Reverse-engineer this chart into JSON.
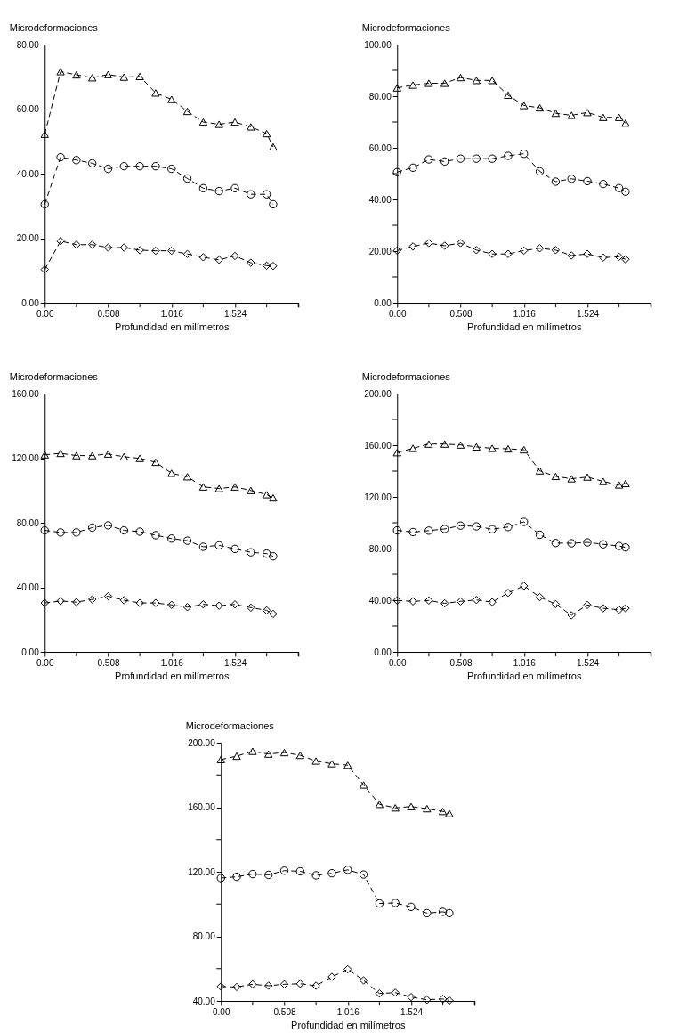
{
  "chart_data": [
    {
      "type": "line",
      "line_style": "dashed",
      "xlabel": "Profundidad en milímetros",
      "ylabel": "Microdeformaciones",
      "xlim": [
        0,
        2.032
      ],
      "ylim": [
        0,
        80
      ],
      "x": [
        0,
        0.127,
        0.254,
        0.381,
        0.508,
        0.635,
        0.762,
        0.889,
        1.016,
        1.143,
        1.27,
        1.397,
        1.524,
        1.651,
        1.778,
        1.83
      ],
      "xticks": [
        {
          "value": 0,
          "label": "0.00"
        },
        {
          "value": 0.254,
          "label": null
        },
        {
          "value": 0.508,
          "label": "0.508"
        },
        {
          "value": 0.762,
          "label": null
        },
        {
          "value": 1.016,
          "label": "1.016"
        },
        {
          "value": 1.27,
          "label": null
        },
        {
          "value": 1.524,
          "label": "1.524"
        },
        {
          "value": 1.778,
          "label": null
        },
        {
          "value": 2.032,
          "label": null
        }
      ],
      "yticks": [
        {
          "value": 0,
          "label": "0.00"
        },
        {
          "value": 20,
          "label": "20.00"
        },
        {
          "value": 40,
          "label": "40.00"
        },
        {
          "value": 60,
          "label": "60.00"
        },
        {
          "value": 80,
          "label": "80.00"
        }
      ],
      "series": [
        {
          "marker": "triangle",
          "color": "#000000",
          "values": [
            52.2,
            71.6,
            70.6,
            69.7,
            70.7,
            69.9,
            70.1,
            65,
            63,
            59.3,
            56,
            55.3,
            56,
            54.5,
            52.4,
            48.3
          ]
        },
        {
          "marker": "circle",
          "color": "#000000",
          "values": [
            30.5,
            45.1,
            44.2,
            43.2,
            41.5,
            42.3,
            42.3,
            42.3,
            41.5,
            38.5,
            35.5,
            34.6,
            35.5,
            33.6,
            33.6,
            30.5
          ]
        },
        {
          "marker": "diamond",
          "color": "#000000",
          "values": [
            10.3,
            19.1,
            18,
            18,
            17.1,
            17.1,
            16.3,
            16.1,
            16.1,
            15.1,
            14.1,
            13.3,
            14.5,
            12.4,
            11.5,
            11.4
          ]
        }
      ]
    },
    {
      "type": "line",
      "line_style": "dashed",
      "xlabel": "Profundidad en milímetros",
      "ylabel": "Microdeformaciones",
      "xlim": [
        0,
        2.032
      ],
      "ylim": [
        0,
        100
      ],
      "x": [
        0,
        0.127,
        0.254,
        0.381,
        0.508,
        0.635,
        0.762,
        0.889,
        1.016,
        1.143,
        1.27,
        1.397,
        1.524,
        1.651,
        1.778,
        1.83
      ],
      "xticks": [
        {
          "value": 0,
          "label": "0.00"
        },
        {
          "value": 0.254,
          "label": null
        },
        {
          "value": 0.508,
          "label": "0.508"
        },
        {
          "value": 0.762,
          "label": null
        },
        {
          "value": 1.016,
          "label": "1.016"
        },
        {
          "value": 1.27,
          "label": null
        },
        {
          "value": 1.524,
          "label": "1.524"
        },
        {
          "value": 1.778,
          "label": null
        },
        {
          "value": 2.032,
          "label": null
        }
      ],
      "yticks": [
        {
          "value": 0,
          "label": "0.00"
        },
        {
          "value": 10,
          "label": null
        },
        {
          "value": 20,
          "label": "20.00"
        },
        {
          "value": 30,
          "label": null
        },
        {
          "value": 40,
          "label": "40.00"
        },
        {
          "value": 50,
          "label": null
        },
        {
          "value": 60,
          "label": "60.00"
        },
        {
          "value": 70,
          "label": null
        },
        {
          "value": 80,
          "label": "80.00"
        },
        {
          "value": 90,
          "label": null
        },
        {
          "value": 100,
          "label": "100.00"
        }
      ],
      "series": [
        {
          "marker": "triangle",
          "color": "#000000",
          "values": [
            83.2,
            84.3,
            85,
            85,
            87.2,
            86.1,
            86.1,
            80.4,
            76.4,
            75.5,
            73.4,
            72.6,
            73.7,
            71.8,
            71.8,
            69.6
          ]
        },
        {
          "marker": "circle",
          "color": "#000000",
          "values": [
            50.6,
            52.3,
            55.5,
            54.7,
            55.8,
            55.8,
            55.8,
            56.9,
            57.7,
            50.9,
            46.9,
            48,
            47.1,
            46,
            44.4,
            43
          ]
        },
        {
          "marker": "diamond",
          "color": "#000000",
          "values": [
            20.2,
            21.8,
            23.1,
            22.1,
            23.1,
            20.4,
            18.9,
            18.9,
            20.2,
            21.1,
            20.4,
            18.3,
            18.9,
            17.5,
            17.8,
            16.8
          ]
        }
      ]
    },
    {
      "type": "line",
      "line_style": "dashed",
      "xlabel": "Profundidad en milímetros",
      "ylabel": "Microdeformaciones",
      "xlim": [
        0,
        2.032
      ],
      "ylim": [
        0,
        160
      ],
      "x": [
        0,
        0.127,
        0.254,
        0.381,
        0.508,
        0.635,
        0.762,
        0.889,
        1.016,
        1.143,
        1.27,
        1.397,
        1.524,
        1.651,
        1.778,
        1.83
      ],
      "xticks": [
        {
          "value": 0,
          "label": "0.00"
        },
        {
          "value": 0.254,
          "label": null
        },
        {
          "value": 0.508,
          "label": "0.508"
        },
        {
          "value": 0.762,
          "label": null
        },
        {
          "value": 1.016,
          "label": "1.016"
        },
        {
          "value": 1.27,
          "label": null
        },
        {
          "value": 1.524,
          "label": "1.524"
        },
        {
          "value": 1.778,
          "label": null
        },
        {
          "value": 2.032,
          "label": null
        }
      ],
      "yticks": [
        {
          "value": 0,
          "label": "0.00"
        },
        {
          "value": 40,
          "label": "40.00"
        },
        {
          "value": 80,
          "label": "80.00"
        },
        {
          "value": 120,
          "label": "120.00"
        },
        {
          "value": 160,
          "label": "160.00"
        }
      ],
      "series": [
        {
          "marker": "triangle",
          "color": "#000000",
          "values": [
            122.1,
            123,
            121.6,
            121.6,
            122.6,
            120.9,
            119.9,
            117.5,
            110.7,
            108.5,
            102.2,
            101.2,
            102.2,
            100,
            97.4,
            95.4
          ]
        },
        {
          "marker": "circle",
          "color": "#000000",
          "values": [
            75.3,
            74,
            74,
            77,
            78.4,
            75.3,
            74.5,
            72.3,
            70.2,
            68.9,
            65.1,
            66,
            63.8,
            61.7,
            60.9,
            59.2
          ]
        },
        {
          "marker": "diamond",
          "color": "#000000",
          "values": [
            30.3,
            31.5,
            30.8,
            32.5,
            34.5,
            32,
            30.3,
            30.3,
            29.1,
            27.7,
            29.4,
            28.6,
            29.4,
            27.4,
            25.7,
            23.5
          ]
        }
      ]
    },
    {
      "type": "line",
      "line_style": "dashed",
      "xlabel": "Profundidad en milímetros",
      "ylabel": "Microdeformaciones",
      "xlim": [
        0,
        2.032
      ],
      "ylim": [
        0,
        200
      ],
      "x": [
        0,
        0.127,
        0.254,
        0.381,
        0.508,
        0.635,
        0.762,
        0.889,
        1.016,
        1.143,
        1.27,
        1.397,
        1.524,
        1.651,
        1.778,
        1.83
      ],
      "xticks": [
        {
          "value": 0,
          "label": "0.00"
        },
        {
          "value": 0.254,
          "label": null
        },
        {
          "value": 0.508,
          "label": "0.508"
        },
        {
          "value": 0.762,
          "label": null
        },
        {
          "value": 1.016,
          "label": "1.016"
        },
        {
          "value": 1.27,
          "label": null
        },
        {
          "value": 1.524,
          "label": "1.524"
        },
        {
          "value": 1.778,
          "label": null
        },
        {
          "value": 2.032,
          "label": null
        }
      ],
      "yticks": [
        {
          "value": 0,
          "label": "0.00"
        },
        {
          "value": 20,
          "label": null
        },
        {
          "value": 40,
          "label": "40.00"
        },
        {
          "value": 60,
          "label": null
        },
        {
          "value": 80,
          "label": "80.00"
        },
        {
          "value": 100,
          "label": null
        },
        {
          "value": 120,
          "label": "120.00"
        },
        {
          "value": 140,
          "label": null
        },
        {
          "value": 160,
          "label": "160.00"
        },
        {
          "value": 180,
          "label": null
        },
        {
          "value": 200,
          "label": "200.00"
        }
      ],
      "series": [
        {
          "marker": "triangle",
          "color": "#000000",
          "values": [
            154.3,
            157.6,
            160.9,
            160.9,
            160.2,
            158.7,
            157.6,
            157.2,
            156.5,
            140.2,
            135.9,
            134.1,
            135.4,
            132,
            129.3,
            130.4
          ]
        },
        {
          "marker": "circle",
          "color": "#000000",
          "values": [
            94.1,
            92.8,
            93.9,
            95.2,
            97.8,
            97.2,
            95,
            96.7,
            100.7,
            90.7,
            84.3,
            84.1,
            84.8,
            83.3,
            82,
            80.9
          ]
        },
        {
          "marker": "diamond",
          "color": "#000000",
          "values": [
            39.8,
            39.1,
            39.8,
            37.6,
            39.1,
            40.2,
            38.5,
            45.7,
            51.1,
            42.4,
            37,
            28.3,
            36.3,
            33.7,
            32.6,
            33.7
          ]
        }
      ]
    },
    {
      "type": "line",
      "line_style": "dashed",
      "xlabel": "Profundidad en milímetros",
      "ylabel": "Microdeformaciones",
      "xlim": [
        0,
        2.032
      ],
      "ylim": [
        40,
        200
      ],
      "x": [
        0,
        0.127,
        0.254,
        0.381,
        0.508,
        0.635,
        0.762,
        0.889,
        1.016,
        1.143,
        1.27,
        1.397,
        1.524,
        1.651,
        1.778,
        1.83
      ],
      "xticks": [
        {
          "value": 0,
          "label": "0.00"
        },
        {
          "value": 0.254,
          "label": null
        },
        {
          "value": 0.508,
          "label": "0.508"
        },
        {
          "value": 0.762,
          "label": null
        },
        {
          "value": 1.016,
          "label": "1.016"
        },
        {
          "value": 1.27,
          "label": null
        },
        {
          "value": 1.524,
          "label": "1.524"
        },
        {
          "value": 1.778,
          "label": null
        },
        {
          "value": 2.032,
          "label": null
        }
      ],
      "yticks": [
        {
          "value": 40,
          "label": "40.00"
        },
        {
          "value": 60,
          "label": null
        },
        {
          "value": 80,
          "label": "80.00"
        },
        {
          "value": 100,
          "label": null
        },
        {
          "value": 120,
          "label": "120.00"
        },
        {
          "value": 140,
          "label": null
        },
        {
          "value": 160,
          "label": "160.00"
        },
        {
          "value": 180,
          "label": null
        },
        {
          "value": 200,
          "label": "200.00"
        }
      ],
      "series": [
        {
          "marker": "triangle",
          "color": "#000000",
          "values": [
            189.6,
            191.7,
            194.7,
            193,
            193.9,
            192.2,
            188.7,
            187,
            186.1,
            173.8,
            161.8,
            159.6,
            160.4,
            159.1,
            157.4,
            156.1
          ]
        },
        {
          "marker": "circle",
          "color": "#000000",
          "values": [
            116.1,
            116.9,
            118.6,
            118.1,
            120.7,
            120.3,
            117.8,
            119.1,
            121.2,
            118.3,
            100.4,
            100.7,
            98.3,
            94.4,
            95.2,
            94.4
          ]
        },
        {
          "marker": "diamond",
          "color": "#000000",
          "values": [
            48.9,
            48.6,
            50.3,
            49.4,
            50.3,
            50.6,
            49.4,
            54.9,
            59.6,
            52.7,
            44.6,
            45.1,
            42.4,
            40.7,
            41.2,
            40.3
          ]
        }
      ]
    }
  ]
}
